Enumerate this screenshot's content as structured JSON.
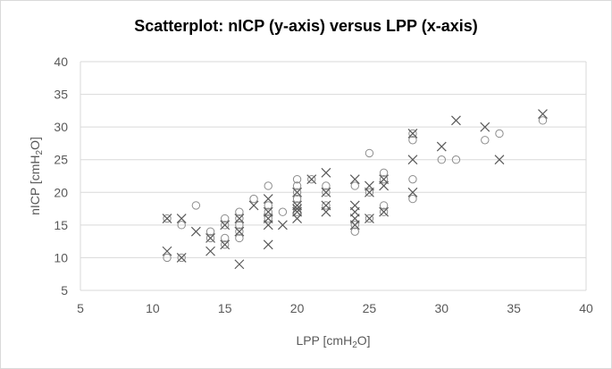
{
  "chart_data": {
    "type": "scatter",
    "title": "Scatterplot: nICP (y-axis) versus LPP (x-axis)",
    "xlabel": {
      "pre": "LPP [cmH",
      "sub": "2",
      "post": "O]"
    },
    "ylabel": {
      "pre": "nICP [cmH",
      "sub": "2",
      "post": "O]"
    },
    "xlim": [
      5,
      40
    ],
    "ylim": [
      5,
      40
    ],
    "xticks": [
      5,
      10,
      15,
      20,
      25,
      30,
      35,
      40
    ],
    "yticks": [
      5,
      10,
      15,
      20,
      25,
      30,
      35,
      40
    ],
    "grid": "horizontal",
    "legend": "none",
    "colors": {
      "grid": "#d9d9d9",
      "axis": "#bfbfbf",
      "marker": "#595959",
      "circle": "#8c8c8c"
    },
    "series": [
      {
        "marker": "circle",
        "points": [
          [
            11,
            10
          ],
          [
            11,
            16
          ],
          [
            12,
            10
          ],
          [
            12,
            15
          ],
          [
            13,
            18
          ],
          [
            14,
            13
          ],
          [
            14,
            14
          ],
          [
            15,
            12
          ],
          [
            15,
            13
          ],
          [
            15,
            15
          ],
          [
            15,
            16
          ],
          [
            16,
            13
          ],
          [
            16,
            14
          ],
          [
            16,
            15
          ],
          [
            16,
            16
          ],
          [
            16,
            17
          ],
          [
            17,
            19
          ],
          [
            18,
            21
          ],
          [
            18,
            18
          ],
          [
            18,
            17
          ],
          [
            18,
            16
          ],
          [
            19,
            17
          ],
          [
            20,
            22
          ],
          [
            20,
            21
          ],
          [
            20,
            20
          ],
          [
            20,
            19
          ],
          [
            20,
            18
          ],
          [
            20,
            17
          ],
          [
            21,
            22
          ],
          [
            22,
            21
          ],
          [
            22,
            20
          ],
          [
            22,
            18
          ],
          [
            24,
            21
          ],
          [
            24,
            15
          ],
          [
            24,
            14
          ],
          [
            25,
            26
          ],
          [
            25,
            20
          ],
          [
            25,
            16
          ],
          [
            26,
            23
          ],
          [
            26,
            22
          ],
          [
            26,
            18
          ],
          [
            26,
            17
          ],
          [
            28,
            29
          ],
          [
            28,
            28
          ],
          [
            28,
            22
          ],
          [
            28,
            19
          ],
          [
            30,
            25
          ],
          [
            31,
            25
          ],
          [
            33,
            28
          ],
          [
            34,
            29
          ],
          [
            37,
            31
          ]
        ]
      },
      {
        "marker": "x",
        "points": [
          [
            11,
            16
          ],
          [
            11,
            11
          ],
          [
            12,
            16
          ],
          [
            12,
            10
          ],
          [
            13,
            14
          ],
          [
            14,
            13
          ],
          [
            14,
            11
          ],
          [
            15,
            15
          ],
          [
            15,
            12
          ],
          [
            16,
            16
          ],
          [
            16,
            14
          ],
          [
            16,
            9
          ],
          [
            17,
            18
          ],
          [
            18,
            19
          ],
          [
            18,
            17
          ],
          [
            18,
            16
          ],
          [
            18,
            15
          ],
          [
            18,
            12
          ],
          [
            19,
            15
          ],
          [
            20,
            20
          ],
          [
            20,
            18
          ],
          [
            20,
            17.5
          ],
          [
            20,
            17
          ],
          [
            20,
            16
          ],
          [
            21,
            22
          ],
          [
            22,
            23
          ],
          [
            22,
            20
          ],
          [
            22,
            18
          ],
          [
            22,
            17
          ],
          [
            24,
            22
          ],
          [
            24,
            18
          ],
          [
            24,
            17
          ],
          [
            24,
            16
          ],
          [
            24,
            15
          ],
          [
            25,
            21
          ],
          [
            25,
            20
          ],
          [
            25,
            16
          ],
          [
            26,
            22
          ],
          [
            26,
            21
          ],
          [
            26,
            17
          ],
          [
            28,
            29
          ],
          [
            28,
            25
          ],
          [
            28,
            20
          ],
          [
            30,
            27
          ],
          [
            31,
            31
          ],
          [
            33,
            30
          ],
          [
            34,
            25
          ],
          [
            37,
            32
          ]
        ]
      }
    ]
  }
}
